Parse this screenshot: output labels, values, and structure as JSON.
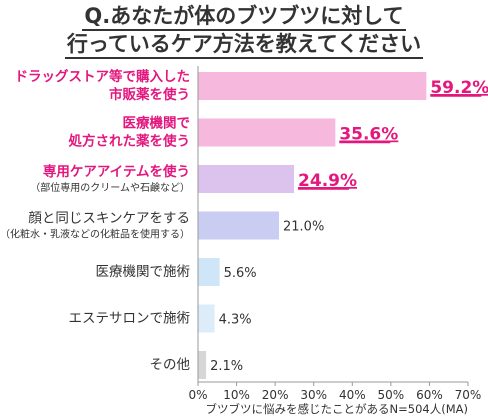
{
  "title_lines": [
    "Q.あなたが体のブツブツに対して",
    "行っているケア方法を教えてください"
  ],
  "chart_data": {
    "type": "bar",
    "orientation": "horizontal",
    "title": "Q.あなたが体のブツブツに対して行っているケア方法を教えてください",
    "categories": [
      {
        "lines": [
          "ドラッグストア等で購入した",
          "市販薬を使う"
        ],
        "sub": ""
      },
      {
        "lines": [
          "医療機関で",
          "処方された薬を使う"
        ],
        "sub": ""
      },
      {
        "lines": [
          "専用ケアアイテムを使う"
        ],
        "sub": "（部位専用のクリームや石鹸など）"
      },
      {
        "lines": [
          "顔と同じスキンケアをする"
        ],
        "sub": "（化粧水・乳液などの化粧品を使用する）"
      },
      {
        "lines": [
          "医療機関で施術"
        ],
        "sub": ""
      },
      {
        "lines": [
          "エステサロンで施術"
        ],
        "sub": ""
      },
      {
        "lines": [
          "その他"
        ],
        "sub": ""
      }
    ],
    "values": [
      59.2,
      35.6,
      24.9,
      21.0,
      5.6,
      4.3,
      2.1
    ],
    "value_labels": [
      "59.2%",
      "35.6%",
      "24.9%",
      "21.0%",
      "5.6%",
      "4.3%",
      "2.1%"
    ],
    "bar_colors": [
      "#f6b8dc",
      "#f6b8dc",
      "#dcc3ee",
      "#c9cdf2",
      "#cfe6f8",
      "#dcecf8",
      "#d6d6d6"
    ],
    "highlight_color": "#e3177e",
    "highlight_count": 3,
    "xlim": [
      0,
      70
    ],
    "xticks": [
      0,
      10,
      20,
      30,
      40,
      50,
      60,
      70
    ],
    "tick_suffix": "%",
    "grid": false,
    "xlabel": "ブツブツに悩みを感じたことがあるN=504人(MA)"
  }
}
